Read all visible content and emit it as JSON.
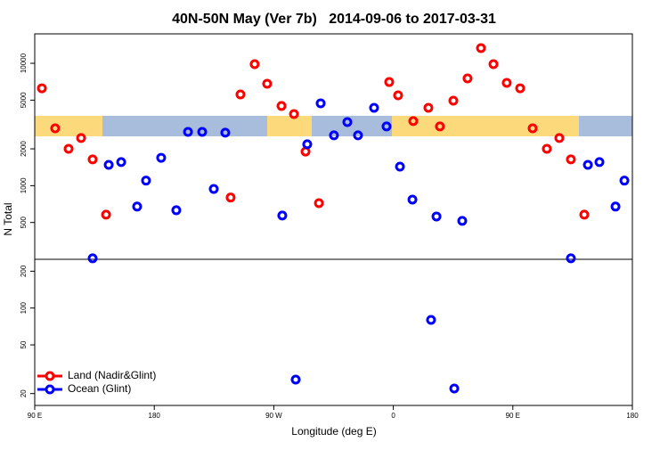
{
  "chart_data": {
    "type": "scatter",
    "title": "40N-50N May (Ver 7b)   2014-09-06 to 2017-03-31",
    "x_label": "Longitude (deg E)",
    "y_label": "N Total",
    "log_y": true,
    "legend": "bottom-left",
    "reference_line": 250,
    "xlim": [
      90,
      540
    ],
    "ylim": [
      16,
      17400
    ],
    "xticks": [
      {
        "value": 90,
        "label": "90 E"
      },
      180,
      {
        "value": 270,
        "label": "90 W"
      },
      {
        "value": 360,
        "label": "0"
      },
      {
        "value": 450,
        "label": "90 E"
      },
      {
        "value": 540,
        "label": "180"
      }
    ],
    "yticks": [
      20,
      50,
      100,
      200,
      500,
      1000,
      2000,
      5000,
      10000
    ],
    "series": [
      {
        "name": "Land (Nadir&Glint)",
        "color": "#ff0000",
        "x": [
          95.4,
          105.4,
          115.5,
          124.9,
          133.6,
          143.7,
          237.5,
          244.9,
          255.6,
          265.0,
          275.8,
          285.2,
          293.9,
          304.0,
          356.9,
          363.6,
          375.0,
          386.4,
          395.1,
          405.2,
          415.9,
          426.0,
          435.4,
          445.4,
          455.5,
          464.9,
          475.6,
          485.0,
          493.7,
          503.8
        ],
        "values": [
          6250,
          2940,
          2000,
          2450,
          1640,
          580,
          800,
          5560,
          9840,
          6800,
          4480,
          3850,
          1900,
          720,
          7030,
          5470,
          3370,
          4330,
          3050,
          4950,
          7520,
          13300,
          9840,
          6920,
          6250,
          2940,
          2000,
          2450,
          1640,
          580
        ]
      },
      {
        "name": "Ocean (Glint)",
        "color": "#0000ff",
        "x": [
          133.6,
          145.7,
          155.1,
          167.1,
          173.8,
          185.2,
          196.6,
          205.4,
          216.1,
          224.8,
          233.5,
          276.4,
          286.5,
          295.2,
          305.3,
          315.3,
          325.4,
          333.4,
          345.5,
          354.9,
          365.0,
          374.4,
          388.4,
          392.5,
          405.9,
          411.9,
          493.7,
          506.5,
          515.2,
          527.3,
          534.0
        ],
        "values": [
          255,
          1480,
          1560,
          675,
          1100,
          1690,
          630,
          2750,
          2750,
          940,
          2710,
          570,
          26,
          2180,
          4710,
          2580,
          3310,
          2580,
          4330,
          3050,
          1430,
          770,
          80,
          560,
          22,
          516,
          255,
          1480,
          1560,
          675,
          1100
        ]
      }
    ]
  }
}
